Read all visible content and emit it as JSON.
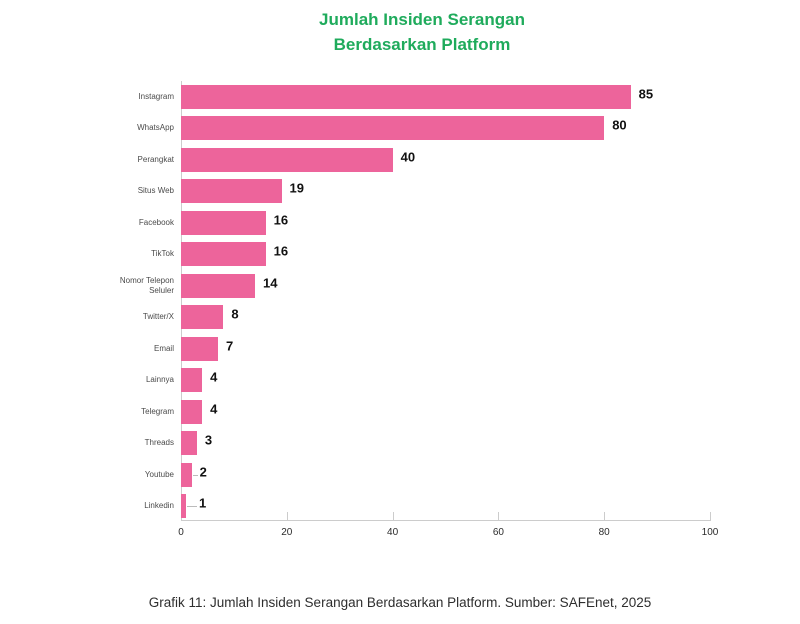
{
  "title": {
    "line1": "Jumlah Insiden Serangan",
    "line2": "Berdasarkan Platform",
    "color": "#1FAB5C"
  },
  "caption": {
    "text": "Grafik 11: Jumlah Insiden Serangan Berdasarkan Platform. Sumber: SAFEnet, 2025"
  },
  "chart_data": {
    "type": "bar",
    "orientation": "horizontal",
    "categories": [
      "Instagram",
      "WhatsApp",
      "Perangkat",
      "Situs Web",
      "Facebook",
      "TikTok",
      "Nomor Telepon Seluler",
      "Twitter/X",
      "Email",
      "Lainnya",
      "Telegram",
      "Threads",
      "Youtube",
      "Linkedin"
    ],
    "values": [
      85,
      80,
      40,
      19,
      16,
      16,
      14,
      8,
      7,
      4,
      4,
      3,
      2,
      1
    ],
    "title": "Jumlah Insiden Serangan Berdasarkan Platform",
    "xlabel": "",
    "ylabel": "",
    "xlim": [
      0,
      100
    ],
    "x_ticks": [
      0,
      20,
      40,
      60,
      80,
      100
    ],
    "bar_color": "#ED649B",
    "grid": false,
    "value_labels": true,
    "legend": "none"
  }
}
